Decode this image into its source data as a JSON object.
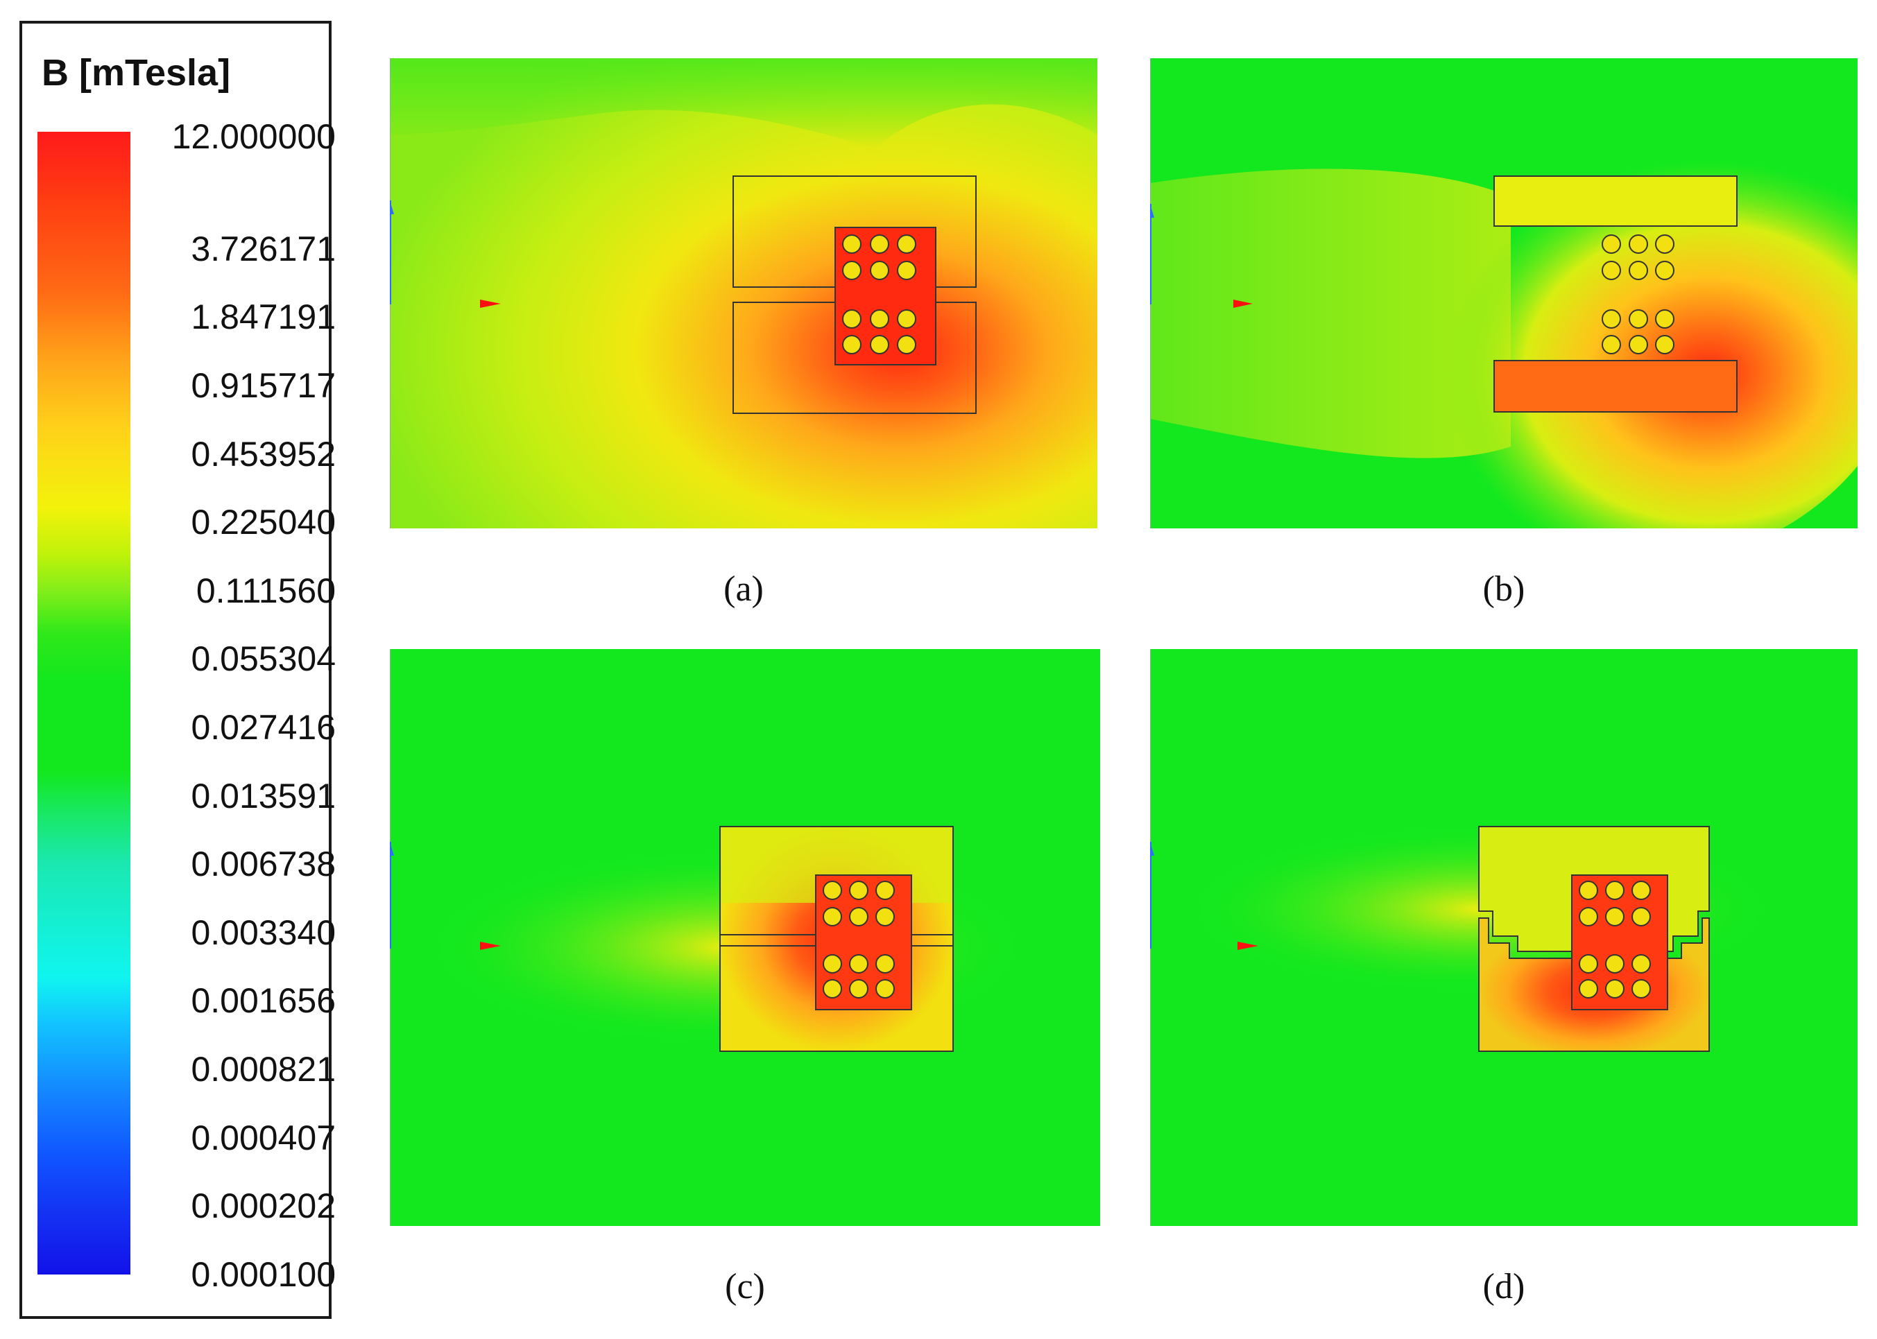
{
  "legend": {
    "title": "B [mTesla]",
    "ticks": [
      "12.000000",
      "3.726171",
      "1.847191",
      "0.915717",
      "0.453952",
      "0.225040",
      "0.111560",
      "0.055304",
      "0.027416",
      "0.013591",
      "0.006738",
      "0.003340",
      "0.001656",
      "0.000821",
      "0.000407",
      "0.000202",
      "0.000100"
    ]
  },
  "panels": [
    {
      "label": "(a)"
    },
    {
      "label": "(b)"
    },
    {
      "label": "(c)"
    },
    {
      "label": "(d)"
    }
  ],
  "colors": {
    "field_high": "#ff2a10",
    "field_mid": "#f2f20a",
    "field_low": "#13e81e",
    "field_min": "#1212e8",
    "axis_y": "#2b6fff",
    "axis_x": "#ff1010"
  }
}
